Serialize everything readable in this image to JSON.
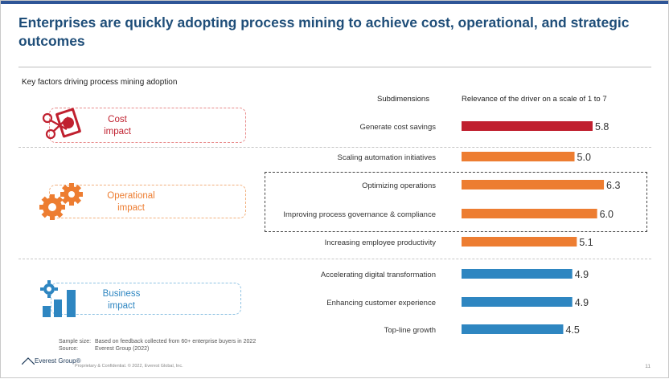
{
  "title": "Enterprises are quickly adopting process mining to achieve cost, operational, and strategic outcomes",
  "subtitle": "Key factors driving process mining adoption",
  "column_headers": {
    "subdimensions": "Subdimensions",
    "relevance": "Relevance of the driver on a scale of 1 to 7"
  },
  "categories": [
    {
      "label": "Cost impact",
      "line1": "Cost",
      "line2": "impact",
      "color": "#c0202f",
      "icon": "money-scissors-icon"
    },
    {
      "label": "Operational impact",
      "line1": "Operational",
      "line2": "impact",
      "color": "#ed7d31",
      "icon": "gears-icon"
    },
    {
      "label": "Business impact",
      "line1": "Business",
      "line2": "impact",
      "color": "#2e86c1",
      "icon": "growth-bars-icon"
    }
  ],
  "notes": {
    "sample_size_label": "Sample size:",
    "sample_size_value": "Based on feedback collected from 60+ enterprise buyers in 2022",
    "source_label": "Source:",
    "source_value": "Everest Group (2022)"
  },
  "footer": {
    "logo": "Everest Group®",
    "text": "Proprietary & Confidential. © 2022, Everest Global, Inc.",
    "page_number": "11"
  },
  "colors": {
    "title": "#1f4e79",
    "cost": "#c0202f",
    "operational": "#ed7d31",
    "business": "#2e86c1",
    "top_band": "#2e5597"
  },
  "chart_data": {
    "type": "bar",
    "orientation": "horizontal",
    "xlim": [
      1,
      7
    ],
    "categories": [
      "Generate cost savings",
      "Scaling automation initiatives",
      "Optimizing operations",
      "Improving process governance & compliance",
      "Increasing employee productivity",
      "Accelerating digital transformation",
      "Enhancing customer experience",
      "Top-line growth"
    ],
    "values": [
      5.8,
      5.0,
      6.3,
      6.0,
      5.1,
      4.9,
      4.9,
      4.5
    ],
    "value_labels": [
      "5.8",
      "5.0",
      "6.3",
      "6.0",
      "5.1",
      "4.9",
      "4.9",
      "4.5"
    ],
    "groups": [
      "Cost impact",
      "Operational impact",
      "Operational impact",
      "Operational impact",
      "Operational impact",
      "Business impact",
      "Business impact",
      "Business impact"
    ],
    "highlighted": [
      "Optimizing operations",
      "Improving process governance & compliance"
    ]
  }
}
